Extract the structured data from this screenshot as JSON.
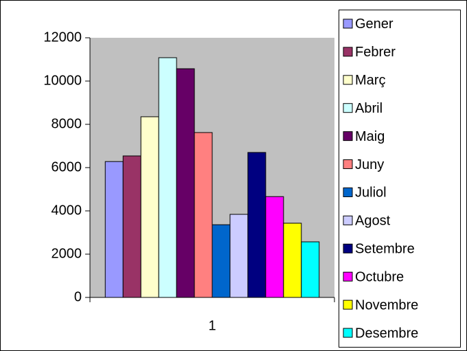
{
  "chart_data": {
    "type": "bar",
    "categories": [
      "1"
    ],
    "series": [
      {
        "name": "Gener",
        "color": "#9999ff",
        "values": [
          6280
        ]
      },
      {
        "name": "Febrer",
        "color": "#993366",
        "values": [
          6540
        ]
      },
      {
        "name": "Març",
        "color": "#ffffcc",
        "values": [
          8350
        ]
      },
      {
        "name": "Abril",
        "color": "#ccffff",
        "values": [
          11080
        ]
      },
      {
        "name": "Maig",
        "color": "#660066",
        "values": [
          10570
        ]
      },
      {
        "name": "Juny",
        "color": "#ff8080",
        "values": [
          7620
        ]
      },
      {
        "name": "Juliol",
        "color": "#0066cc",
        "values": [
          3360
        ]
      },
      {
        "name": "Agost",
        "color": "#ccccff",
        "values": [
          3840
        ]
      },
      {
        "name": "Setembre",
        "color": "#000080",
        "values": [
          6700
        ]
      },
      {
        "name": "Octubre",
        "color": "#ff00ff",
        "values": [
          4660
        ]
      },
      {
        "name": "Novembre",
        "color": "#ffff00",
        "values": [
          3430
        ]
      },
      {
        "name": "Desembre",
        "color": "#00ffff",
        "values": [
          2570
        ]
      }
    ],
    "ylim": [
      0,
      12000
    ],
    "yticks": [
      0,
      2000,
      4000,
      6000,
      8000,
      10000,
      12000
    ],
    "plot_background": "#c0c0c0",
    "legend": "right"
  }
}
